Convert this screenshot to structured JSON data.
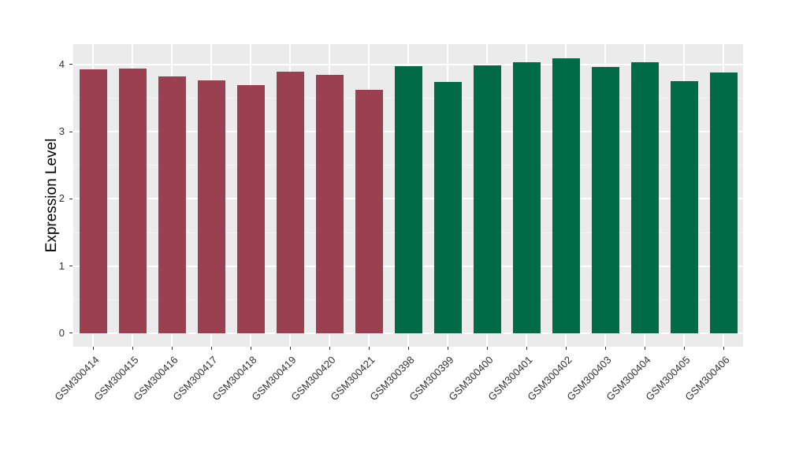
{
  "chart_data": {
    "type": "bar",
    "title": "",
    "xlabel": "",
    "ylabel": "Expression Level",
    "ylim": [
      -0.2,
      4.305
    ],
    "yticks": [
      0,
      1,
      2,
      3,
      4
    ],
    "grid": true,
    "legend": "none",
    "categories": [
      "GSM300414",
      "GSM300415",
      "GSM300416",
      "GSM300417",
      "GSM300418",
      "GSM300419",
      "GSM300420",
      "GSM300421",
      "GSM300398",
      "GSM300399",
      "GSM300400",
      "GSM300401",
      "GSM300402",
      "GSM300403",
      "GSM300404",
      "GSM300405",
      "GSM300406"
    ],
    "values": [
      3.93,
      3.94,
      3.82,
      3.77,
      3.7,
      3.9,
      3.85,
      3.62,
      3.98,
      3.74,
      3.99,
      4.03,
      4.09,
      3.97,
      4.03,
      3.75,
      3.88
    ],
    "colors": [
      "#9A4050",
      "#9A4050",
      "#9A4050",
      "#9A4050",
      "#9A4050",
      "#9A4050",
      "#9A4050",
      "#9A4050",
      "#006B46",
      "#006B46",
      "#006B46",
      "#006B46",
      "#006B46",
      "#006B46",
      "#006B46",
      "#006B46",
      "#006B46"
    ]
  },
  "style": {
    "panel_bg": "#EBEBEB",
    "grid_major": "#FFFFFF",
    "grid_minor": "#F4F4F4",
    "tick_color": "#333333",
    "axis_text_color": "#333333",
    "title_color": "#000000",
    "figure_bg": "#FFFFFF"
  }
}
